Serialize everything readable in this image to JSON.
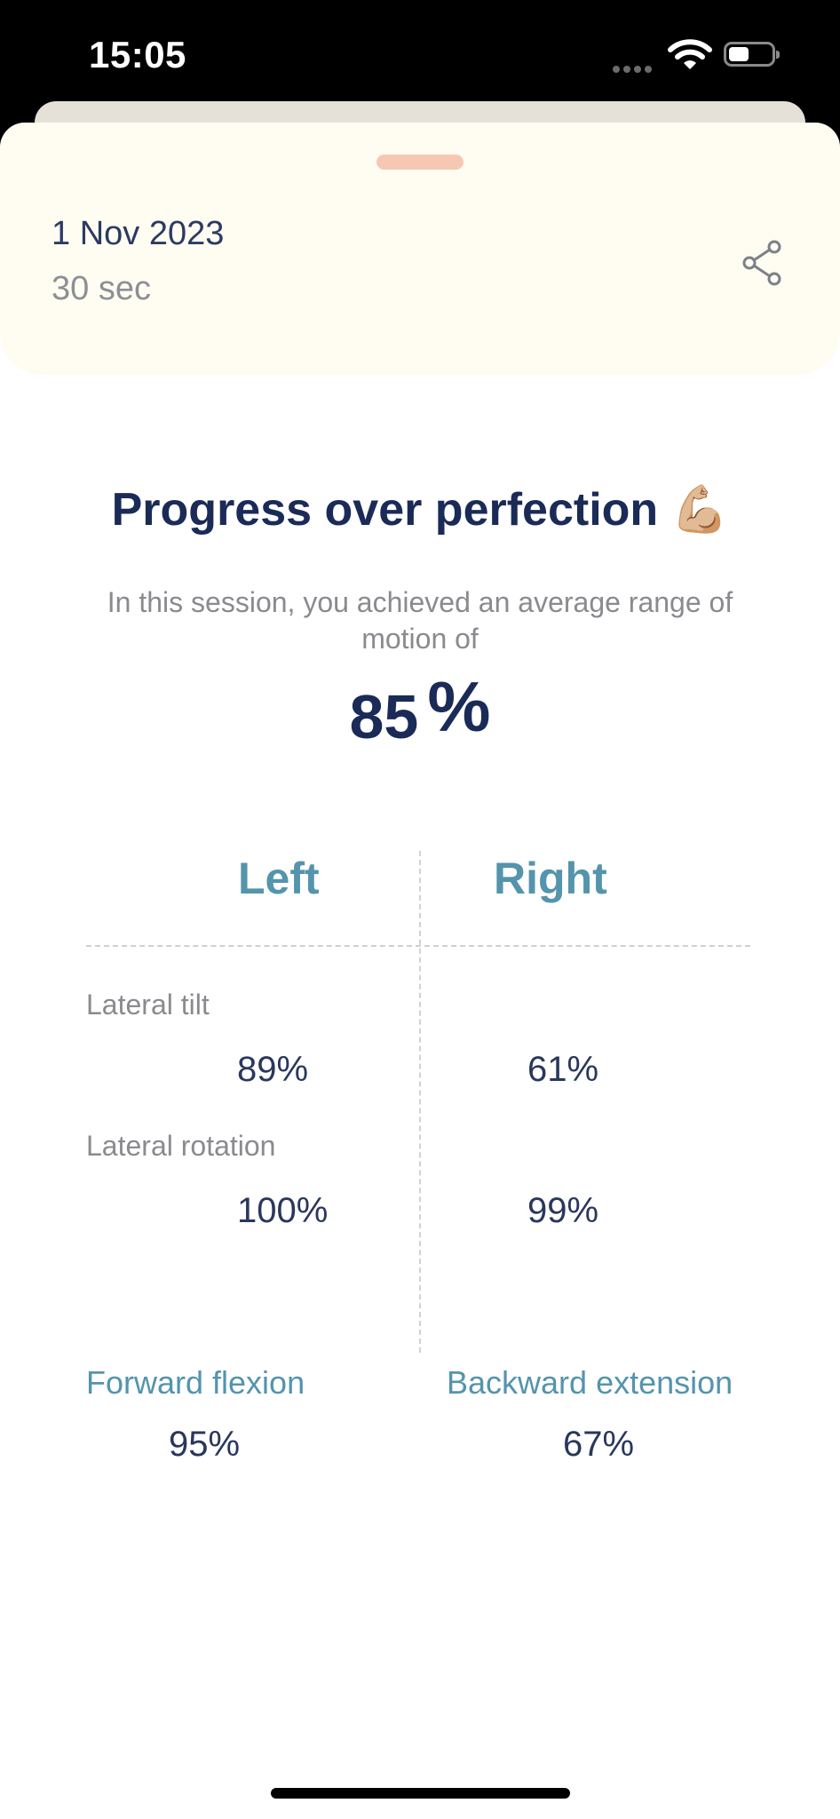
{
  "status_bar": {
    "time": "15:05"
  },
  "header": {
    "date": "1 Nov 2023",
    "duration": "30 sec"
  },
  "summary": {
    "title": "Progress over perfection 💪🏼",
    "subtitle": "In this session, you achieved an average range of motion of",
    "average_value": "85",
    "average_unit": "%"
  },
  "sides": {
    "left_label": "Left",
    "right_label": "Right",
    "rows": [
      {
        "label": "Lateral tilt",
        "left": "89%",
        "right": "61%"
      },
      {
        "label": "Lateral rotation",
        "left": "100%",
        "right": "99%"
      }
    ]
  },
  "flexion": {
    "forward_label": "Forward flexion",
    "forward_value": "95%",
    "backward_label": "Backward extension",
    "backward_value": "67%"
  },
  "icons": {
    "share": "share-icon",
    "wifi": "wifi-icon",
    "battery": "battery-icon",
    "signal": "signal-icon"
  },
  "colors": {
    "accent": "#5494ad",
    "navy": "#1b2b57",
    "header_bg": "#fffdf1",
    "grabber": "#f6c8b4"
  }
}
